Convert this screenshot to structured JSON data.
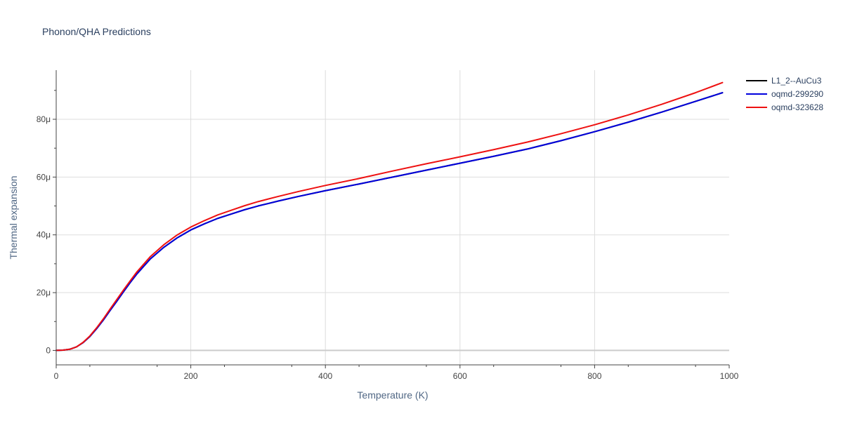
{
  "chart_data": {
    "type": "line",
    "title": "Phonon/QHA Predictions",
    "xlabel": "Temperature (K)",
    "ylabel": "Thermal expansion",
    "xlim": [
      0,
      1000
    ],
    "ylim": [
      -5e-06,
      9.7e-05
    ],
    "x_ticks": [
      0,
      200,
      400,
      600,
      800,
      1000
    ],
    "x_tick_labels": [
      "0",
      "200",
      "400",
      "600",
      "800",
      "1000"
    ],
    "y_ticks": [
      0,
      2e-05,
      4e-05,
      6e-05,
      8e-05
    ],
    "y_tick_labels": [
      "0",
      "20μ",
      "40μ",
      "60μ",
      "80μ"
    ],
    "grid": true,
    "legend": "top-right",
    "series": [
      {
        "name": "L1_2--AuCu3",
        "color": "#000000",
        "x": [
          0,
          10,
          20,
          30,
          40,
          50,
          60,
          70,
          80,
          90,
          100,
          110,
          120,
          140,
          160,
          180,
          200,
          220,
          240,
          260,
          280,
          300,
          330,
          360,
          400,
          450,
          500,
          550,
          600,
          650,
          700,
          750,
          800,
          850,
          900,
          950,
          990
        ],
        "y": [
          0,
          1e-07,
          4e-07,
          1.2e-06,
          2.7e-06,
          4.8e-06,
          7.5e-06,
          1.05e-05,
          1.38e-05,
          1.7e-05,
          2.03e-05,
          2.35e-05,
          2.65e-05,
          3.17e-05,
          3.57e-05,
          3.9e-05,
          4.17e-05,
          4.38e-05,
          4.57e-05,
          4.72e-05,
          4.87e-05,
          5e-05,
          5.17e-05,
          5.33e-05,
          5.53e-05,
          5.76e-05,
          6e-05,
          6.24e-05,
          6.48e-05,
          6.72e-05,
          6.97e-05,
          7.26e-05,
          7.57e-05,
          7.9e-05,
          8.25e-05,
          8.62e-05,
          8.92e-05
        ]
      },
      {
        "name": "oqmd-299290",
        "color": "#0000dd",
        "x": [
          0,
          10,
          20,
          30,
          40,
          50,
          60,
          70,
          80,
          90,
          100,
          110,
          120,
          140,
          160,
          180,
          200,
          220,
          240,
          260,
          280,
          300,
          330,
          360,
          400,
          450,
          500,
          550,
          600,
          650,
          700,
          750,
          800,
          850,
          900,
          950,
          990
        ],
        "y": [
          0,
          1e-07,
          4e-07,
          1.2e-06,
          2.7e-06,
          4.8e-06,
          7.5e-06,
          1.05e-05,
          1.38e-05,
          1.7e-05,
          2.03e-05,
          2.35e-05,
          2.65e-05,
          3.17e-05,
          3.57e-05,
          3.9e-05,
          4.17e-05,
          4.38e-05,
          4.57e-05,
          4.72e-05,
          4.87e-05,
          5e-05,
          5.17e-05,
          5.33e-05,
          5.53e-05,
          5.76e-05,
          6e-05,
          6.24e-05,
          6.48e-05,
          6.72e-05,
          6.97e-05,
          7.26e-05,
          7.57e-05,
          7.9e-05,
          8.25e-05,
          8.62e-05,
          8.92e-05
        ]
      },
      {
        "name": "oqmd-323628",
        "color": "#ee1111",
        "x": [
          0,
          10,
          20,
          30,
          40,
          50,
          60,
          70,
          80,
          90,
          100,
          110,
          120,
          140,
          160,
          180,
          200,
          220,
          240,
          260,
          280,
          300,
          330,
          360,
          400,
          450,
          500,
          550,
          600,
          650,
          700,
          750,
          800,
          850,
          900,
          950,
          990
        ],
        "y": [
          0,
          1e-07,
          4e-07,
          1.2e-06,
          2.8e-06,
          5e-06,
          7.8e-06,
          1.09e-05,
          1.43e-05,
          1.76e-05,
          2.09e-05,
          2.41e-05,
          2.72e-05,
          3.25e-05,
          3.66e-05,
          4e-05,
          4.27e-05,
          4.49e-05,
          4.69e-05,
          4.85e-05,
          5.01e-05,
          5.15e-05,
          5.33e-05,
          5.5e-05,
          5.71e-05,
          5.95e-05,
          6.21e-05,
          6.46e-05,
          6.7e-05,
          6.95e-05,
          7.21e-05,
          7.5e-05,
          7.81e-05,
          8.15e-05,
          8.52e-05,
          8.92e-05,
          9.27e-05
        ]
      }
    ]
  }
}
